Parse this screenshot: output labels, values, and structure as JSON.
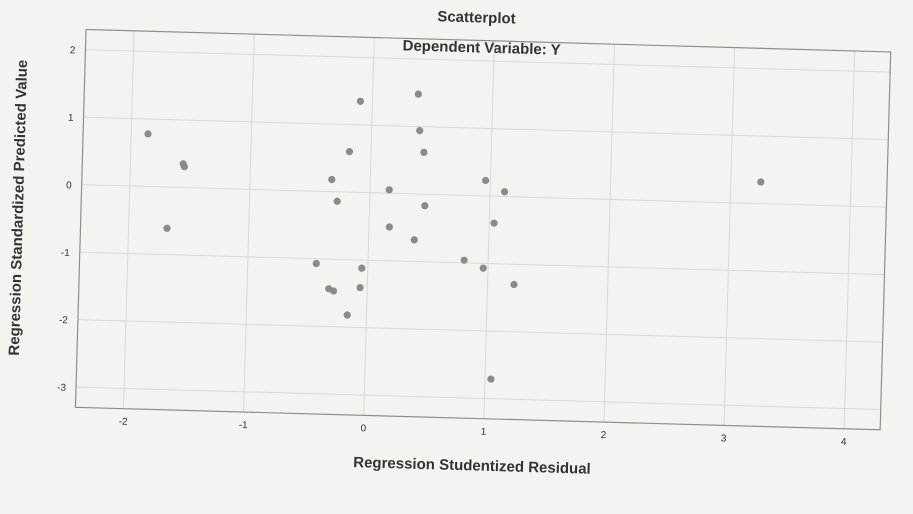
{
  "chart_data": {
    "type": "scatter",
    "title": "Scatterplot",
    "subtitle": "Dependent Variable: Y",
    "xlabel": "Regression Studentized Residual",
    "ylabel": "Regression Standardized Predicted Value",
    "xlim": [
      -2.4,
      4.3
    ],
    "ylim": [
      -3.3,
      2.3
    ],
    "xticks": [
      -2,
      -1,
      0,
      1,
      2,
      3,
      4
    ],
    "yticks": [
      2,
      1,
      0,
      -1,
      -2,
      -3
    ],
    "grid": true,
    "series": [
      {
        "values": [
          {
            "x": -1.86,
            "y": 0.78
          },
          {
            "x": -1.56,
            "y": 0.35
          },
          {
            "x": -1.55,
            "y": 0.31
          },
          {
            "x": -1.68,
            "y": -0.61
          },
          {
            "x": -0.1,
            "y": 1.35
          },
          {
            "x": 0.38,
            "y": 1.48
          },
          {
            "x": 0.4,
            "y": 0.94
          },
          {
            "x": 0.44,
            "y": 0.62
          },
          {
            "x": -0.18,
            "y": 0.6
          },
          {
            "x": -0.32,
            "y": 0.18
          },
          {
            "x": -0.27,
            "y": -0.14
          },
          {
            "x": 0.16,
            "y": 0.05
          },
          {
            "x": 0.46,
            "y": -0.17
          },
          {
            "x": 0.17,
            "y": -0.5
          },
          {
            "x": 0.38,
            "y": -0.68
          },
          {
            "x": 0.96,
            "y": 0.23
          },
          {
            "x": 1.12,
            "y": 0.07
          },
          {
            "x": 1.04,
            "y": -0.4
          },
          {
            "x": 0.8,
            "y": -0.96
          },
          {
            "x": 0.96,
            "y": -1.07
          },
          {
            "x": 1.22,
            "y": -1.3
          },
          {
            "x": -0.43,
            "y": -1.07
          },
          {
            "x": -0.05,
            "y": -1.12
          },
          {
            "x": -0.06,
            "y": -1.41
          },
          {
            "x": -0.32,
            "y": -1.44
          },
          {
            "x": -0.28,
            "y": -1.47
          },
          {
            "x": -0.16,
            "y": -1.82
          },
          {
            "x": 1.05,
            "y": -2.71
          },
          {
            "x": 3.25,
            "y": 0.32
          }
        ]
      }
    ]
  }
}
